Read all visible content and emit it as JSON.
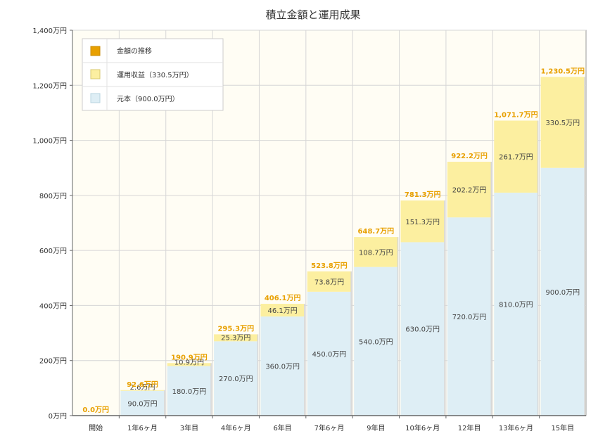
{
  "chart_data": {
    "type": "bar",
    "stacked": true,
    "title": "積立金額と運用成果",
    "categories": [
      "開始",
      "1年6ヶ月",
      "3年目",
      "4年6ヶ月",
      "6年目",
      "7年6ヶ月",
      "9年目",
      "10年6ヶ月",
      "12年目",
      "13年6ヶ月",
      "15年目"
    ],
    "ylim": [
      0,
      1400
    ],
    "yticks": [
      0,
      200,
      400,
      600,
      800,
      1000,
      1200,
      1400
    ],
    "ytick_labels": [
      "0万円",
      "200万円",
      "400万円",
      "600万円",
      "800万円",
      "1,000万円",
      "1,200万円",
      "1,400万円"
    ],
    "grid": true,
    "legend_position": "top-left",
    "series": [
      {
        "name": "元本（900.0万円）",
        "color": "#deeef5",
        "values": [
          0,
          90.0,
          180.0,
          270.0,
          360.0,
          450.0,
          540.0,
          630.0,
          720.0,
          810.0,
          900.0
        ],
        "labels": [
          "",
          "90.0万円",
          "180.0万円",
          "270.0万円",
          "360.0万円",
          "450.0万円",
          "540.0万円",
          "630.0万円",
          "720.0万円",
          "810.0万円",
          "900.0万円"
        ]
      },
      {
        "name": "運用収益（330.5万円）",
        "color": "#fcefa0",
        "values": [
          0,
          2.6,
          10.9,
          25.3,
          46.1,
          73.8,
          108.7,
          151.3,
          202.2,
          261.7,
          330.5
        ],
        "labels": [
          "",
          "2.6万円",
          "10.9万円",
          "25.3万円",
          "46.1万円",
          "73.8万円",
          "108.7万円",
          "151.3万円",
          "202.2万円",
          "261.7万円",
          "330.5万円"
        ]
      }
    ],
    "totals": {
      "name": "金額の推移",
      "color": "#e8a000",
      "values": [
        0.0,
        92.6,
        190.9,
        295.3,
        406.1,
        523.8,
        648.7,
        781.3,
        922.2,
        1071.7,
        1230.5
      ],
      "labels": [
        "0.0万円",
        "92.6万円",
        "190.9万円",
        "295.3万円",
        "406.1万円",
        "523.8万円",
        "648.7万円",
        "781.3万円",
        "922.2万円",
        "1,071.7万円",
        "1,230.5万円"
      ]
    },
    "legend": [
      {
        "label": "金額の推移",
        "color": "#e8a000"
      },
      {
        "label": "運用収益（330.5万円）",
        "color": "#fcefa0"
      },
      {
        "label": "元本（900.0万円）",
        "color": "#deeef5"
      }
    ]
  }
}
